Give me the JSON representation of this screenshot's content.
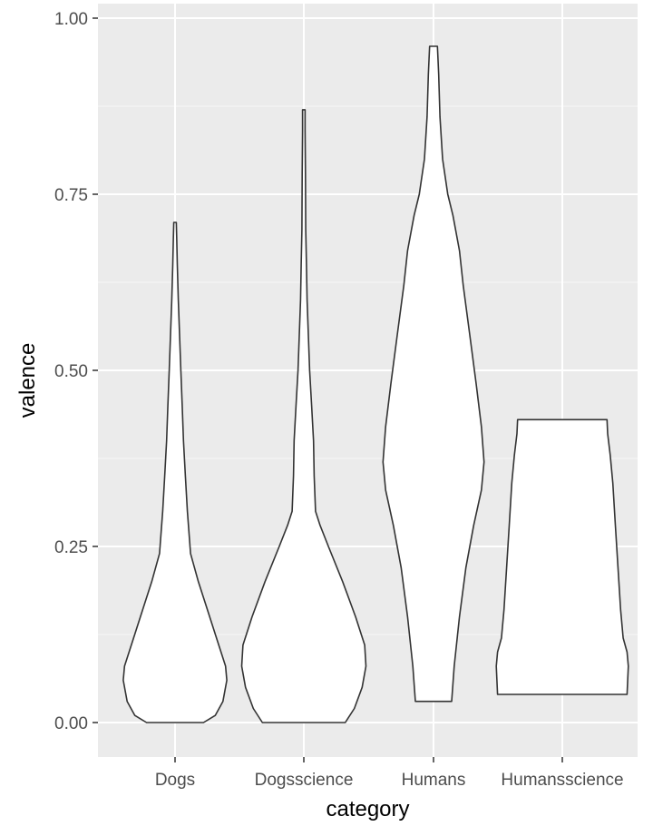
{
  "chart_data": {
    "type": "violin",
    "xlabel": "category",
    "ylabel": "valence",
    "ylim": [
      -0.05,
      1.005
    ],
    "yticks": [
      0.0,
      0.25,
      0.5,
      0.75,
      1.0
    ],
    "ytick_labels": [
      "0.00",
      "0.25",
      "0.50",
      "0.75",
      "1.00"
    ],
    "grid": true,
    "legend": "none",
    "categories": [
      "Dogs",
      "Dogsscience",
      "Humans",
      "Humansscience"
    ],
    "series": [
      {
        "category": "Dogs",
        "min": 0.0,
        "max": 0.71,
        "profile": [
          [
            0.0,
            0.44
          ],
          [
            0.01,
            0.62
          ],
          [
            0.03,
            0.74
          ],
          [
            0.06,
            0.8
          ],
          [
            0.08,
            0.78
          ],
          [
            0.12,
            0.64
          ],
          [
            0.16,
            0.5
          ],
          [
            0.2,
            0.36
          ],
          [
            0.24,
            0.24
          ],
          [
            0.3,
            0.19
          ],
          [
            0.35,
            0.16
          ],
          [
            0.4,
            0.13
          ],
          [
            0.45,
            0.11
          ],
          [
            0.5,
            0.09
          ],
          [
            0.55,
            0.07
          ],
          [
            0.6,
            0.05
          ],
          [
            0.65,
            0.035
          ],
          [
            0.69,
            0.025
          ],
          [
            0.71,
            0.02
          ]
        ]
      },
      {
        "category": "Dogsscience",
        "min": 0.0,
        "max": 0.87,
        "profile": [
          [
            0.0,
            0.64
          ],
          [
            0.02,
            0.78
          ],
          [
            0.05,
            0.9
          ],
          [
            0.08,
            0.96
          ],
          [
            0.11,
            0.94
          ],
          [
            0.15,
            0.8
          ],
          [
            0.2,
            0.6
          ],
          [
            0.25,
            0.38
          ],
          [
            0.28,
            0.25
          ],
          [
            0.3,
            0.18
          ],
          [
            0.35,
            0.16
          ],
          [
            0.4,
            0.15
          ],
          [
            0.45,
            0.12
          ],
          [
            0.5,
            0.09
          ],
          [
            0.55,
            0.07
          ],
          [
            0.6,
            0.05
          ],
          [
            0.65,
            0.04
          ],
          [
            0.7,
            0.03
          ],
          [
            0.78,
            0.025
          ],
          [
            0.84,
            0.02
          ],
          [
            0.87,
            0.02
          ]
        ]
      },
      {
        "category": "Humans",
        "min": 0.03,
        "max": 0.96,
        "profile": [
          [
            0.03,
            0.28
          ],
          [
            0.08,
            0.32
          ],
          [
            0.15,
            0.4
          ],
          [
            0.22,
            0.5
          ],
          [
            0.28,
            0.62
          ],
          [
            0.33,
            0.74
          ],
          [
            0.37,
            0.78
          ],
          [
            0.42,
            0.74
          ],
          [
            0.48,
            0.66
          ],
          [
            0.55,
            0.56
          ],
          [
            0.62,
            0.46
          ],
          [
            0.67,
            0.4
          ],
          [
            0.72,
            0.3
          ],
          [
            0.75,
            0.22
          ],
          [
            0.8,
            0.14
          ],
          [
            0.86,
            0.1
          ],
          [
            0.92,
            0.08
          ],
          [
            0.96,
            0.06
          ]
        ]
      },
      {
        "category": "Humansscience",
        "min": 0.04,
        "max": 0.43,
        "profile": [
          [
            0.04,
            1.0
          ],
          [
            0.06,
            1.01
          ],
          [
            0.08,
            1.02
          ],
          [
            0.1,
            1.0
          ],
          [
            0.12,
            0.94
          ],
          [
            0.16,
            0.9
          ],
          [
            0.22,
            0.86
          ],
          [
            0.28,
            0.82
          ],
          [
            0.34,
            0.78
          ],
          [
            0.38,
            0.74
          ],
          [
            0.41,
            0.7
          ],
          [
            0.43,
            0.69
          ]
        ]
      }
    ],
    "colors": {
      "panel": "#ebebeb",
      "grid_major": "#ffffff",
      "violin_fill": "#ffffff",
      "violin_stroke": "#333333",
      "tick": "#333333"
    }
  }
}
